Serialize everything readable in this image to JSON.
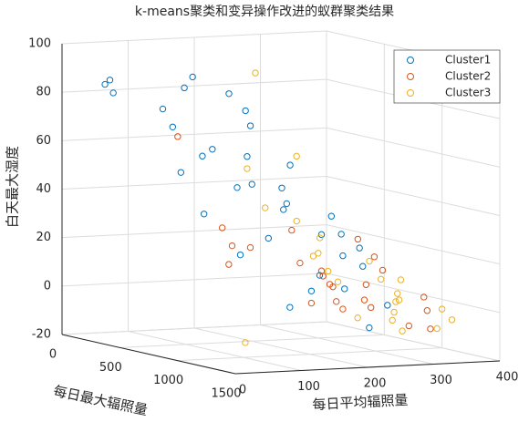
{
  "chart_data": {
    "type": "scatter3d",
    "title": "k-means聚类和变异操作改进的蚁群聚类结果",
    "xlabel": "每日平均辐照量",
    "ylabel": "每日最大辐照量",
    "zlabel": "白天最大湿度",
    "xlim": [
      0,
      400
    ],
    "xticks": [
      0,
      100,
      200,
      300,
      400
    ],
    "ylim": [
      0,
      1500
    ],
    "yticks": [
      0,
      500,
      1000,
      1500
    ],
    "zlim": [
      -20,
      100
    ],
    "zticks": [
      -20,
      0,
      20,
      40,
      60,
      80,
      100
    ],
    "grid": true,
    "legend": "upper right",
    "series": [
      {
        "name": "Cluster1",
        "color": "#0072BD",
        "x": [
          20,
          30,
          60,
          80,
          100,
          150,
          180,
          200,
          40,
          90,
          130,
          160,
          210,
          250,
          120,
          60,
          200,
          230,
          280,
          150,
          100,
          250,
          300,
          320,
          180,
          270,
          340,
          40,
          220,
          300,
          350,
          380,
          140,
          260,
          310
        ],
        "y": [
          300,
          200,
          100,
          500,
          300,
          200,
          100,
          300,
          800,
          700,
          900,
          600,
          400,
          200,
          1100,
          1200,
          800,
          600,
          300,
          1300,
          1400,
          1000,
          700,
          500,
          1200,
          900,
          300,
          1000,
          1400,
          1100,
          600,
          400,
          500,
          100,
          200
        ],
        "z": [
          88,
          85,
          80,
          70,
          75,
          82,
          85,
          80,
          55,
          60,
          50,
          45,
          55,
          65,
          30,
          25,
          40,
          35,
          40,
          10,
          5,
          20,
          25,
          30,
          15,
          5,
          20,
          40,
          -5,
          0,
          10,
          15,
          60,
          70,
          48
        ]
      },
      {
        "name": "Cluster2",
        "color": "#D95319",
        "x": [
          150,
          200,
          250,
          300,
          320,
          350,
          380,
          100,
          120,
          180,
          260,
          290,
          340,
          370,
          280,
          330,
          360,
          390,
          60,
          140,
          220,
          310,
          240,
          360
        ],
        "y": [
          1300,
          1200,
          1000,
          900,
          800,
          700,
          600,
          900,
          700,
          600,
          500,
          400,
          300,
          200,
          1400,
          1300,
          1100,
          900,
          1100,
          200,
          1000,
          600,
          1300,
          500
        ],
        "z": [
          5,
          10,
          -2,
          0,
          5,
          15,
          8,
          25,
          30,
          20,
          25,
          10,
          5,
          -2,
          -5,
          -8,
          -3,
          0,
          20,
          62,
          12,
          -4,
          2,
          20
        ]
      },
      {
        "name": "Cluster3",
        "color": "#EDB120",
        "x": [
          180,
          240,
          290,
          310,
          330,
          350,
          370,
          390,
          300,
          320,
          280,
          260,
          340,
          380,
          400,
          360,
          220,
          250,
          150,
          50,
          210,
          395,
          270,
          345
        ],
        "y": [
          1000,
          300,
          1200,
          1100,
          1000,
          900,
          800,
          700,
          500,
          400,
          700,
          900,
          1300,
          1200,
          1000,
          600,
          1300,
          600,
          900,
          1300,
          400,
          500,
          1400,
          200
        ],
        "z": [
          62,
          88,
          -5,
          -3,
          0,
          2,
          -2,
          5,
          15,
          20,
          10,
          8,
          -8,
          -6,
          -4,
          12,
          -2,
          30,
          40,
          -10,
          50,
          3,
          -7,
          10
        ]
      }
    ]
  }
}
